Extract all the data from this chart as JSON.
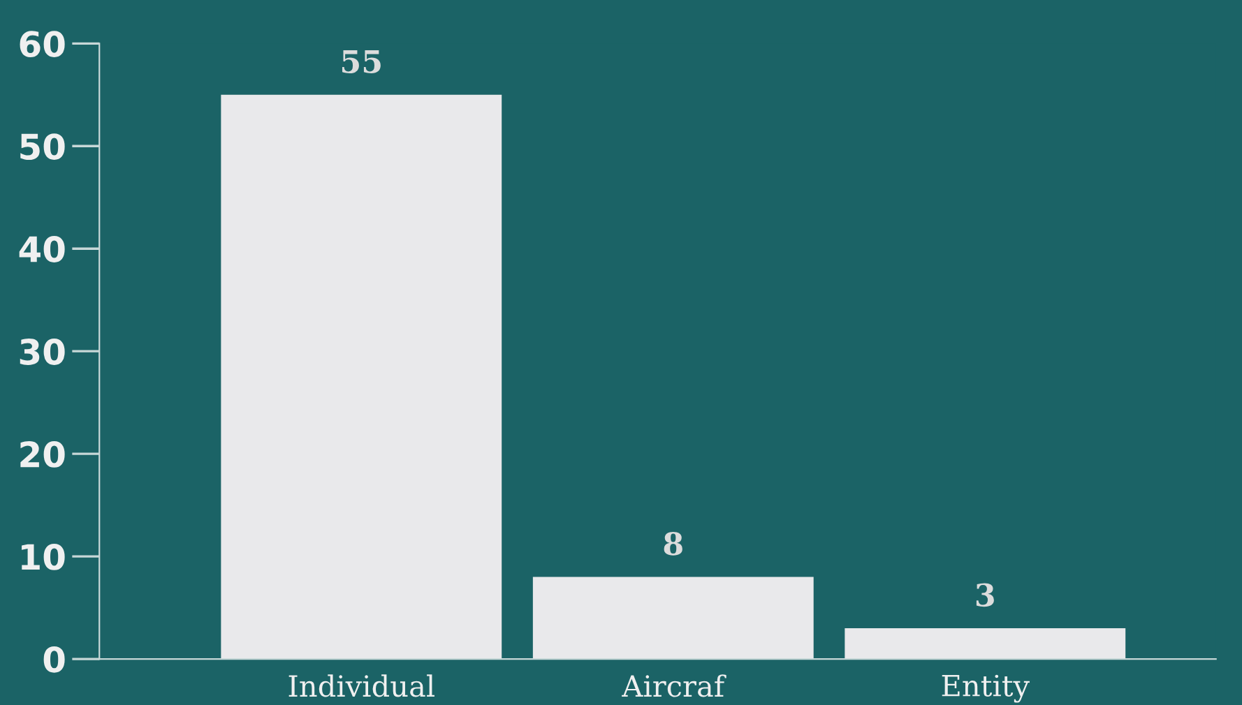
{
  "chart_data": {
    "type": "bar",
    "categories": [
      "Individual",
      "Aircraf",
      "Entity"
    ],
    "values": [
      55,
      8,
      3
    ],
    "color": "#e9e9eb",
    "ylim": [
      0,
      60
    ],
    "yticks": [
      0,
      10,
      20,
      30,
      40,
      50,
      60
    ],
    "data_labels": true,
    "grid": false,
    "legend": false
  }
}
